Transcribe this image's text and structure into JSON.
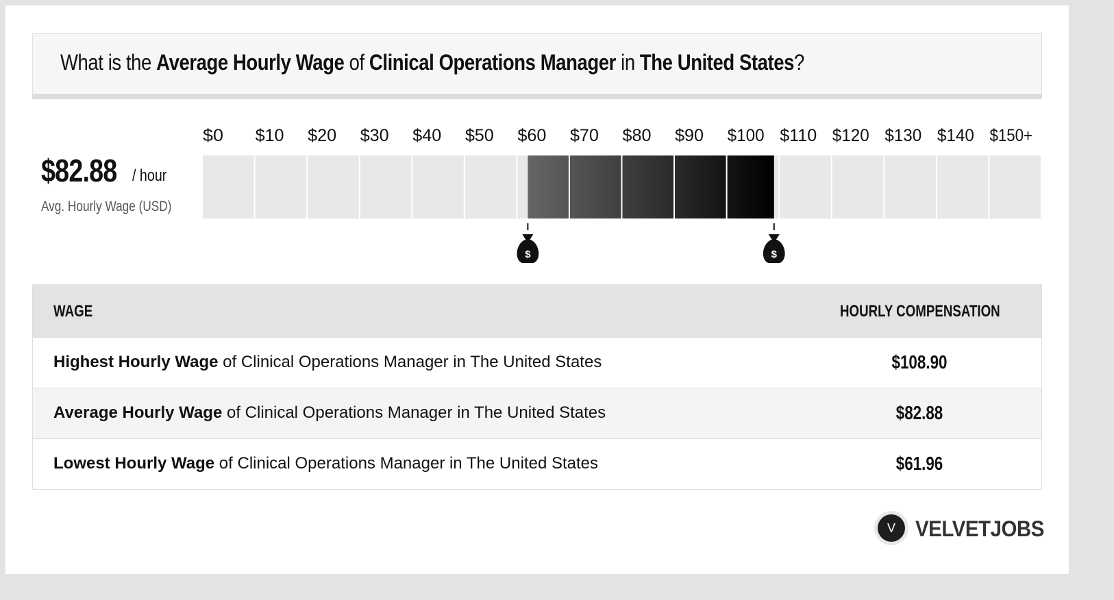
{
  "title": {
    "p1": "What is the ",
    "b1": "Average Hourly Wage",
    "p2": " of ",
    "b2": "Clinical Operations Manager",
    "p3": " in ",
    "b3": "The United States",
    "p4": "?"
  },
  "summary": {
    "value": "$82.88",
    "unit": "/ hour",
    "caption": "Avg. Hourly Wage (USD)"
  },
  "chart_data": {
    "type": "bar",
    "tick_labels": [
      "$0",
      "$10",
      "$20",
      "$30",
      "$40",
      "$50",
      "$60",
      "$70",
      "$80",
      "$90",
      "$100",
      "$110",
      "$120",
      "$130",
      "$140",
      "$150+"
    ],
    "range_low": 61.96,
    "range_high": 108.9,
    "average": 82.88,
    "xlim": [
      0,
      150
    ],
    "marker_icon": "money-bag-icon",
    "colors": {
      "background_cell": "#e8e8e8",
      "gradient_start": "#666666",
      "gradient_end": "#000000"
    }
  },
  "table": {
    "header_left": "WAGE",
    "header_right": "HOURLY COMPENSATION",
    "rows": [
      {
        "bold": "Highest Hourly Wage",
        "rest": " of Clinical Operations Manager in The United States",
        "value": "$108.90"
      },
      {
        "bold": "Average Hourly Wage",
        "rest": " of Clinical Operations Manager in The United States",
        "value": "$82.88"
      },
      {
        "bold": "Lowest Hourly Wage",
        "rest": " of Clinical Operations Manager in The United States",
        "value": "$61.96"
      }
    ]
  },
  "logo": {
    "letter": "V",
    "text": "VELVETJOBS"
  }
}
